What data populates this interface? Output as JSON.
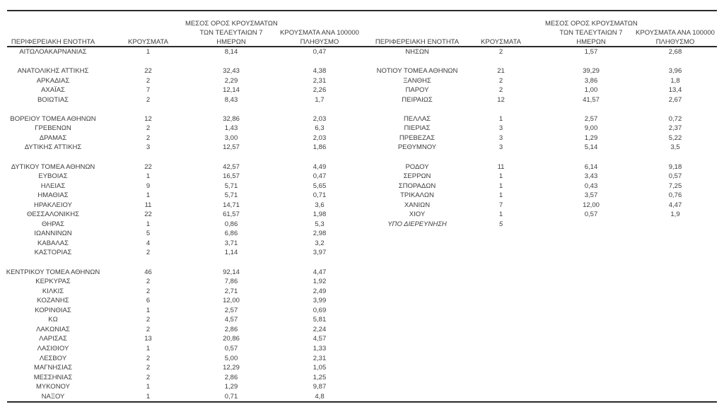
{
  "page": {
    "background_color": "#ffffff",
    "text_color": "#3c3c3c",
    "rule_color": "#2a2a2a"
  },
  "header": {
    "col_region": "ΠΕΡΙΦΕΡΕΙΑΚΗ ΕΝΟΤΗΤΑ",
    "col_cases": "ΚΡΟΥΣΜΑΤΑ",
    "col_avg_line1": "ΜΕΣΟΣ ΟΡΟΣ ΚΡΟΥΣΜΑΤΩΝ",
    "col_avg_line2": "ΤΩΝ ΤΕΛΕΥΤΑΙΩΝ 7",
    "col_avg_line3": "ΗΜΕΡΩΝ",
    "col_per100k_line1": "ΚΡΟΥΣΜΑΤΑ ΑΝΑ 100000",
    "col_per100k_line2": "ΠΛΗΘΥΣΜΟ"
  },
  "left_table": {
    "rows": [
      {
        "region": "ΑΙΤΩΛΟΑΚΑΡΝΑΝΙΑΣ",
        "cases": "1",
        "avg7": "8,14",
        "per100k": "0,47"
      },
      null,
      {
        "region": "ΑΝΑΤΟΛΙΚΗΣ ΑΤΤΙΚΗΣ",
        "cases": "22",
        "avg7": "32,43",
        "per100k": "4,38"
      },
      {
        "region": "ΑΡΚΑΔΙΑΣ",
        "cases": "2",
        "avg7": "2,29",
        "per100k": "2,31"
      },
      {
        "region": "ΑΧΑΪΑΣ",
        "cases": "7",
        "avg7": "12,14",
        "per100k": "2,26"
      },
      {
        "region": "ΒΟΙΩΤΙΑΣ",
        "cases": "2",
        "avg7": "8,43",
        "per100k": "1,7"
      },
      null,
      {
        "region": "ΒΟΡΕΙΟΥ ΤΟΜΕΑ ΑΘΗΝΩΝ",
        "cases": "12",
        "avg7": "32,86",
        "per100k": "2,03"
      },
      {
        "region": "ΓΡΕΒΕΝΩΝ",
        "cases": "2",
        "avg7": "1,43",
        "per100k": "6,3"
      },
      {
        "region": "ΔΡΑΜΑΣ",
        "cases": "2",
        "avg7": "3,00",
        "per100k": "2,03"
      },
      {
        "region": "ΔΥΤΙΚΗΣ ΑΤΤΙΚΗΣ",
        "cases": "3",
        "avg7": "12,57",
        "per100k": "1,86"
      },
      null,
      {
        "region": "ΔΥΤΙΚΟΥ ΤΟΜΕΑ ΑΘΗΝΩΝ",
        "cases": "22",
        "avg7": "42,57",
        "per100k": "4,49"
      },
      {
        "region": "ΕΥΒΟΙΑΣ",
        "cases": "1",
        "avg7": "16,57",
        "per100k": "0,47"
      },
      {
        "region": "ΗΛΕΙΑΣ",
        "cases": "9",
        "avg7": "5,71",
        "per100k": "5,65"
      },
      {
        "region": "ΗΜΑΘΙΑΣ",
        "cases": "1",
        "avg7": "5,71",
        "per100k": "0,71"
      },
      {
        "region": "ΗΡΑΚΛΕΙΟΥ",
        "cases": "11",
        "avg7": "14,71",
        "per100k": "3,6"
      },
      {
        "region": "ΘΕΣΣΑΛΟΝΙΚΗΣ",
        "cases": "22",
        "avg7": "61,57",
        "per100k": "1,98"
      },
      {
        "region": "ΘΗΡΑΣ",
        "cases": "1",
        "avg7": "0,86",
        "per100k": "5,3"
      },
      {
        "region": "ΙΩΑΝΝΙΝΩΝ",
        "cases": "5",
        "avg7": "6,86",
        "per100k": "2,98"
      },
      {
        "region": "ΚΑΒΑΛΑΣ",
        "cases": "4",
        "avg7": "3,71",
        "per100k": "3,2"
      },
      {
        "region": "ΚΑΣΤΟΡΙΑΣ",
        "cases": "2",
        "avg7": "1,14",
        "per100k": "3,97"
      },
      null,
      {
        "region": "ΚΕΝΤΡΙΚΟΥ ΤΟΜΕΑ ΑΘΗΝΩΝ",
        "cases": "46",
        "avg7": "92,14",
        "per100k": "4,47"
      },
      {
        "region": "ΚΕΡΚΥΡΑΣ",
        "cases": "2",
        "avg7": "7,86",
        "per100k": "1,92"
      },
      {
        "region": "ΚΙΛΚΙΣ",
        "cases": "2",
        "avg7": "2,71",
        "per100k": "2,49"
      },
      {
        "region": "ΚΟΖΑΝΗΣ",
        "cases": "6",
        "avg7": "12,00",
        "per100k": "3,99"
      },
      {
        "region": "ΚΟΡΙΝΘΙΑΣ",
        "cases": "1",
        "avg7": "2,57",
        "per100k": "0,69"
      },
      {
        "region": "ΚΩ",
        "cases": "2",
        "avg7": "4,57",
        "per100k": "5,81"
      },
      {
        "region": "ΛΑΚΩΝΙΑΣ",
        "cases": "2",
        "avg7": "2,86",
        "per100k": "2,24"
      },
      {
        "region": "ΛΑΡΙΣΑΣ",
        "cases": "13",
        "avg7": "20,86",
        "per100k": "4,57"
      },
      {
        "region": "ΛΑΣΙΘΙΟΥ",
        "cases": "1",
        "avg7": "0,57",
        "per100k": "1,33"
      },
      {
        "region": "ΛΕΣΒΟΥ",
        "cases": "2",
        "avg7": "5,00",
        "per100k": "2,31"
      },
      {
        "region": "ΜΑΓΝΗΣΙΑΣ",
        "cases": "2",
        "avg7": "12,29",
        "per100k": "1,05"
      },
      {
        "region": "ΜΕΣΣΗΝΙΑΣ",
        "cases": "2",
        "avg7": "2,86",
        "per100k": "1,25"
      },
      {
        "region": "ΜΥΚΟΝΟΥ",
        "cases": "1",
        "avg7": "1,29",
        "per100k": "9,87"
      },
      {
        "region": "ΝΑΞΟΥ",
        "cases": "1",
        "avg7": "0,71",
        "per100k": "4,8"
      }
    ]
  },
  "right_table": {
    "rows": [
      {
        "region": "ΝΗΣΩΝ",
        "cases": "2",
        "avg7": "1,57",
        "per100k": "2,68"
      },
      null,
      {
        "region": "ΝΟΤΙΟΥ ΤΟΜΕΑ ΑΘΗΝΩΝ",
        "cases": "21",
        "avg7": "39,29",
        "per100k": "3,96"
      },
      {
        "region": "ΞΑΝΘΗΣ",
        "cases": "2",
        "avg7": "3,86",
        "per100k": "1,8"
      },
      {
        "region": "ΠΑΡΟΥ",
        "cases": "2",
        "avg7": "1,00",
        "per100k": "13,4"
      },
      {
        "region": "ΠΕΙΡΑΙΩΣ",
        "cases": "12",
        "avg7": "41,57",
        "per100k": "2,67"
      },
      null,
      {
        "region": "ΠΕΛΛΑΣ",
        "cases": "1",
        "avg7": "2,57",
        "per100k": "0,72"
      },
      {
        "region": "ΠΙΕΡΙΑΣ",
        "cases": "3",
        "avg7": "9,00",
        "per100k": "2,37"
      },
      {
        "region": "ΠΡΕΒΕΖΑΣ",
        "cases": "3",
        "avg7": "1,29",
        "per100k": "5,22"
      },
      {
        "region": "ΡΕΘΥΜΝΟΥ",
        "cases": "3",
        "avg7": "5,14",
        "per100k": "3,5"
      },
      null,
      {
        "region": "ΡΟΔΟΥ",
        "cases": "11",
        "avg7": "6,14",
        "per100k": "9,18"
      },
      {
        "region": "ΣΕΡΡΩΝ",
        "cases": "1",
        "avg7": "3,43",
        "per100k": "0,57"
      },
      {
        "region": "ΣΠΟΡΑΔΩΝ",
        "cases": "1",
        "avg7": "0,43",
        "per100k": "7,25"
      },
      {
        "region": "ΤΡΙΚΑΛΩΝ",
        "cases": "1",
        "avg7": "3,57",
        "per100k": "0,76"
      },
      {
        "region": "ΧΑΝΙΩΝ",
        "cases": "7",
        "avg7": "12,00",
        "per100k": "4,47"
      },
      {
        "region": "ΧΙΟΥ",
        "cases": "1",
        "avg7": "0,57",
        "per100k": "1,9"
      },
      {
        "region": "ΥΠΟ ΔΙΕΡΕΥΝΗΣΗ",
        "cases": "5",
        "avg7": "",
        "per100k": "",
        "italic": true
      }
    ]
  }
}
